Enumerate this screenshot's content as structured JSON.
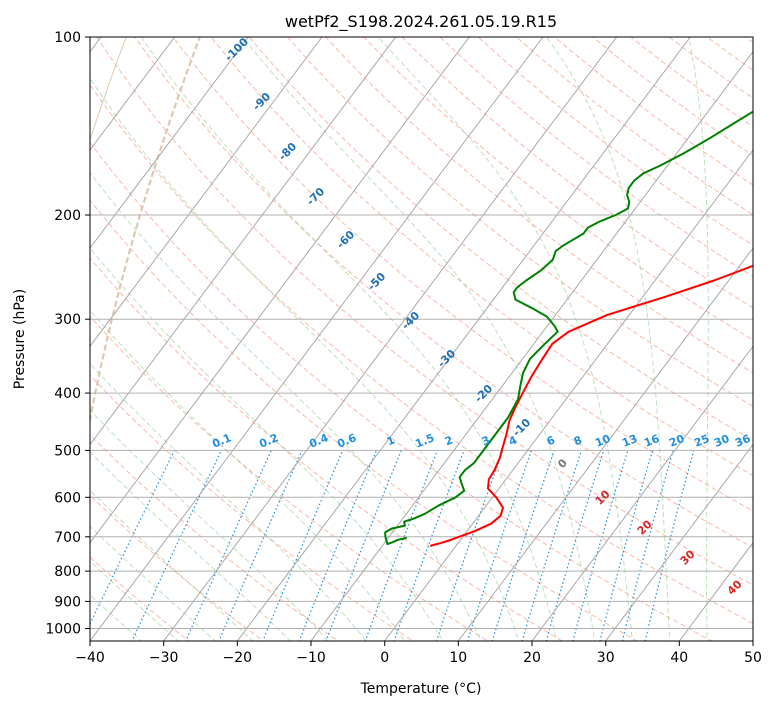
{
  "chart_data": {
    "type": "line",
    "title": "wetPf2_S198.2024.261.05.19.R15",
    "xlabel": "Temperature (°C)",
    "ylabel": "Pressure (hPa)",
    "xlim": [
      -40,
      50
    ],
    "ylim": [
      1050,
      100
    ],
    "y_scale": "log",
    "grid": true,
    "x_ticks": [
      -40,
      -30,
      -20,
      -10,
      0,
      10,
      20,
      30,
      40,
      50
    ],
    "y_ticks": [
      1000,
      900,
      800,
      700,
      600,
      500,
      400,
      300,
      200,
      100
    ],
    "series": [
      {
        "color": "#ff0000",
        "points": [
          [
            -3.5,
            725
          ],
          [
            -2.5,
            718
          ],
          [
            -1.5,
            710
          ],
          [
            -0.5,
            700
          ],
          [
            1,
            685
          ],
          [
            2.5,
            665
          ],
          [
            3,
            645
          ],
          [
            2.5,
            625
          ],
          [
            0.5,
            600
          ],
          [
            -1.5,
            580
          ],
          [
            -2.3,
            560
          ],
          [
            -2.5,
            540
          ],
          [
            -3,
            515
          ],
          [
            -3.5,
            500
          ],
          [
            -4.5,
            470
          ],
          [
            -5.5,
            445
          ],
          [
            -6,
            425
          ],
          [
            -6.5,
            400
          ],
          [
            -7,
            375
          ],
          [
            -7.3,
            350
          ],
          [
            -7.5,
            330
          ],
          [
            -6.5,
            315
          ],
          [
            -3,
            295
          ],
          [
            3,
            275
          ],
          [
            8,
            258
          ],
          [
            12,
            243
          ],
          [
            15.5,
            228
          ],
          [
            17.5,
            215
          ],
          [
            19.5,
            200
          ],
          [
            21.5,
            188
          ],
          [
            23.5,
            175
          ],
          [
            25,
            160
          ],
          [
            26.3,
            145
          ],
          [
            27.5,
            132
          ],
          [
            29.5,
            120
          ],
          [
            31.5,
            110
          ],
          [
            34,
            102
          ],
          [
            35,
            100
          ]
        ]
      },
      {
        "color": "#008000",
        "points": [
          [
            -7.5,
            703
          ],
          [
            -8.5,
            708
          ],
          [
            -9,
            715
          ],
          [
            -9.5,
            720
          ],
          [
            -10.5,
            700
          ],
          [
            -11,
            688
          ],
          [
            -10.5,
            678
          ],
          [
            -9,
            670
          ],
          [
            -9.5,
            660
          ],
          [
            -8.5,
            652
          ],
          [
            -7.5,
            640
          ],
          [
            -6.5,
            620
          ],
          [
            -5,
            600
          ],
          [
            -4.5,
            585
          ],
          [
            -5.5,
            570
          ],
          [
            -6.5,
            555
          ],
          [
            -6.5,
            540
          ],
          [
            -6,
            525
          ],
          [
            -6,
            500
          ],
          [
            -6,
            470
          ],
          [
            -6,
            440
          ],
          [
            -6.5,
            410
          ],
          [
            -7.5,
            390
          ],
          [
            -8.5,
            370
          ],
          [
            -9,
            350
          ],
          [
            -8.5,
            330
          ],
          [
            -8,
            315
          ],
          [
            -9,
            308
          ],
          [
            -11,
            297
          ],
          [
            -14,
            287
          ],
          [
            -17,
            278
          ],
          [
            -18,
            270
          ],
          [
            -18,
            265
          ],
          [
            -17.5,
            258
          ],
          [
            -16.5,
            248
          ],
          [
            -16,
            238
          ],
          [
            -16.5,
            230
          ],
          [
            -16,
            225
          ],
          [
            -14.5,
            215
          ],
          [
            -14.5,
            210
          ],
          [
            -13.5,
            205
          ],
          [
            -12,
            200
          ],
          [
            -11,
            195
          ],
          [
            -11.5,
            190
          ],
          [
            -12.5,
            185
          ],
          [
            -13,
            180
          ],
          [
            -13,
            175
          ],
          [
            -12.5,
            170
          ],
          [
            -11,
            165
          ],
          [
            -9,
            157
          ],
          [
            -7,
            148
          ],
          [
            -5.3,
            140
          ],
          [
            -3.5,
            132
          ],
          [
            -2,
            125
          ],
          [
            -1,
            118
          ],
          [
            -0.5,
            112
          ],
          [
            0.5,
            106
          ],
          [
            1,
            100
          ]
        ]
      }
    ],
    "dry_adiabat_labels": [
      "-100",
      "-90",
      "-80",
      "-70",
      "-60",
      "-50",
      "-40",
      "-30",
      "-20",
      "-10",
      "0",
      "10",
      "20",
      "30",
      "40"
    ],
    "mixing_ratio_labels": [
      "0.1",
      "0.2",
      "0.4",
      "0.6",
      "1",
      "1.5",
      "2",
      "3",
      "4",
      "6",
      "8",
      "10",
      "13",
      "16",
      "20",
      "25",
      "30",
      "36"
    ]
  }
}
